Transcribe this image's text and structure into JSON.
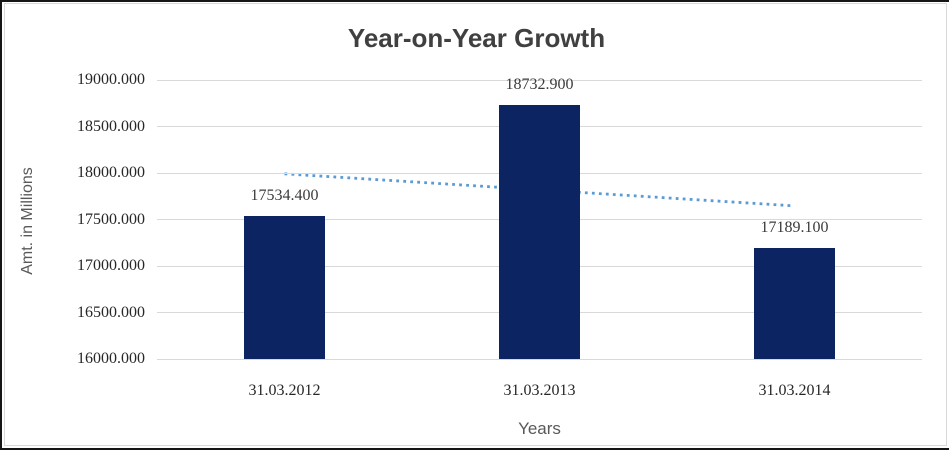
{
  "window": {
    "outer_border_color": "#161616",
    "inner_border_color": "#d9d9d9",
    "background": "#ffffff"
  },
  "chart_data": {
    "type": "bar",
    "title": "Year-on-Year Growth",
    "xlabel": "Years",
    "ylabel": "Amt. in Millions",
    "categories": [
      "31.03.2012",
      "31.03.2013",
      "31.03.2014"
    ],
    "values": [
      17534.4,
      18732.9,
      17189.1
    ],
    "data_labels": [
      "17534.400",
      "18732.900",
      "17189.100"
    ],
    "ylim": [
      16000,
      19000
    ],
    "ytick_step": 500,
    "ytick_labels": [
      "16000.000",
      "16500.000",
      "17000.000",
      "17500.000",
      "18000.000",
      "18500.000",
      "19000.000"
    ],
    "grid": true,
    "legend_position": "none",
    "bar_color": "#0c2461",
    "trendline": {
      "type": "linear",
      "style": "dotted",
      "color": "#5b9bd5"
    },
    "gridline_color": "#d9d9d9",
    "title_color": "#404040",
    "axis_title_color": "#595959",
    "tick_label_color": "#262626",
    "data_label_color": "#3b3b3b"
  }
}
